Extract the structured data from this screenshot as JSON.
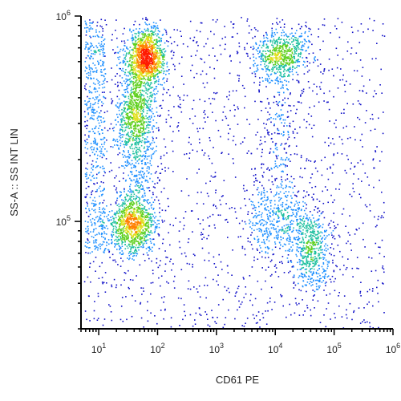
{
  "chart_data": {
    "type": "scatter",
    "style": "flow-cytometry density dot plot",
    "xlabel": "CD61 PE",
    "ylabel": "SS-A :: SS INT LIN",
    "x_scale": "log",
    "y_scale": "log",
    "xlim": [
      5,
      1000000
    ],
    "ylim": [
      30000,
      1000000
    ],
    "x_ticks": [
      {
        "value": 10,
        "base": "10",
        "exp": "1"
      },
      {
        "value": 100,
        "base": "10",
        "exp": "2"
      },
      {
        "value": 1000,
        "base": "10",
        "exp": "3"
      },
      {
        "value": 10000,
        "base": "10",
        "exp": "4"
      },
      {
        "value": 100000,
        "base": "10",
        "exp": "5"
      },
      {
        "value": 1000000,
        "base": "10",
        "exp": "6"
      }
    ],
    "y_ticks": [
      {
        "value": 100000,
        "base": "10",
        "exp": "5"
      },
      {
        "value": 1000000,
        "base": "10",
        "exp": "6"
      }
    ],
    "grid": false,
    "density_colors": [
      "#1010c8",
      "#1e90ff",
      "#20c0a0",
      "#60d020",
      "#e0e020",
      "#ff8000",
      "#ff1a00"
    ],
    "populations": [
      {
        "x_center": 65,
        "y_center": 640000,
        "x_spread_decades": 0.16,
        "y_spread_decades": 0.07,
        "relative_density": 1.0
      },
      {
        "x_center": 40,
        "y_center": 330000,
        "x_spread_decades": 0.15,
        "y_spread_decades": 0.09,
        "relative_density": 0.35
      },
      {
        "x_center": 35,
        "y_center": 95000,
        "x_spread_decades": 0.2,
        "y_spread_decades": 0.07,
        "relative_density": 0.75
      },
      {
        "x_center": 12000,
        "y_center": 660000,
        "x_spread_decades": 0.22,
        "y_spread_decades": 0.06,
        "relative_density": 0.45
      },
      {
        "x_center": 10000,
        "y_center": 100000,
        "x_spread_decades": 0.28,
        "y_spread_decades": 0.08,
        "relative_density": 0.2
      },
      {
        "x_center": 40000,
        "y_center": 75000,
        "x_spread_decades": 0.17,
        "y_spread_decades": 0.1,
        "relative_density": 0.4
      }
    ]
  }
}
